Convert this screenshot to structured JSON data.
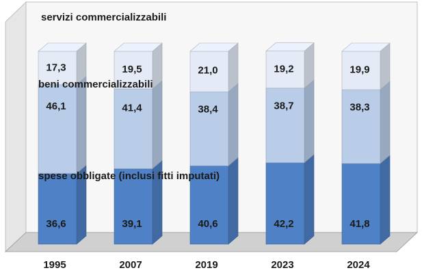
{
  "chart_data": {
    "type": "bar",
    "stacked": true,
    "three_d": true,
    "categories": [
      "1995",
      "2007",
      "2019",
      "2023",
      "2024"
    ],
    "series": [
      {
        "name": "spese obbligate (inclusi fitti imputati)",
        "values": [
          36.6,
          39.1,
          40.6,
          42.2,
          41.8
        ],
        "color": "#4f81c7",
        "label_color": "#1a1a1a"
      },
      {
        "name": "beni commercializzabili",
        "values": [
          46.1,
          41.4,
          38.4,
          38.7,
          38.3
        ],
        "color": "#b9cde9"
      },
      {
        "name": "servizi commercializzabili",
        "values": [
          17.3,
          19.5,
          21.0,
          19.2,
          19.9
        ],
        "color": "#e4ebf6"
      }
    ],
    "value_labels": [
      [
        "36,6",
        "39,1",
        "40,6",
        "42,2",
        "41,8"
      ],
      [
        "46,1",
        "41,4",
        "38,4",
        "38,7",
        "38,3"
      ],
      [
        "17,3",
        "19,5",
        "21,0",
        "19,2",
        "19,9"
      ]
    ],
    "ylim": [
      0,
      100
    ],
    "grid": false,
    "legend": "inline-series-labels"
  }
}
